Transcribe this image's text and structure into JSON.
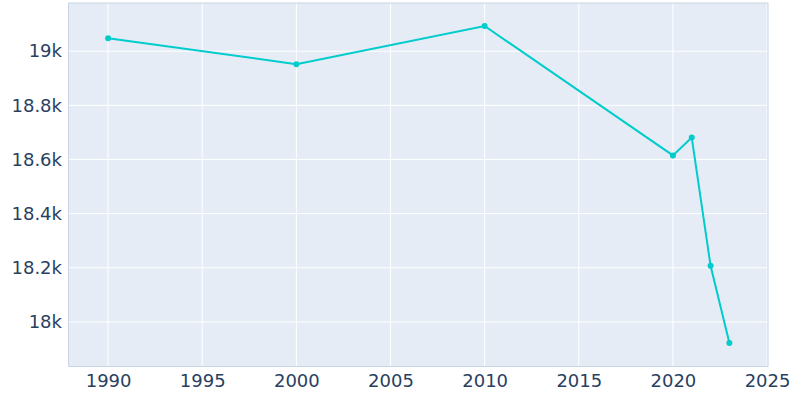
{
  "chart_data": {
    "type": "line",
    "x": [
      1990,
      2000,
      2010,
      2020,
      2021,
      2022,
      2023
    ],
    "values": [
      19048,
      18952,
      19093,
      18615,
      18681,
      18207,
      17922
    ],
    "color": "#00cccc",
    "marker": "circle",
    "xlim": [
      1987.87,
      2025.05
    ],
    "xticks": [
      1990,
      1995,
      2000,
      2005,
      2010,
      2015,
      2020,
      2025
    ],
    "ylim": [
      17837,
      19178
    ],
    "yticks": [
      {
        "value": 18000,
        "label": "18k"
      },
      {
        "value": 18200,
        "label": "18.2k"
      },
      {
        "value": 18400,
        "label": "18.4k"
      },
      {
        "value": 18600,
        "label": "18.6k"
      },
      {
        "value": 18800,
        "label": "18.8k"
      },
      {
        "value": 19000,
        "label": "19k"
      }
    ],
    "grid": true
  }
}
